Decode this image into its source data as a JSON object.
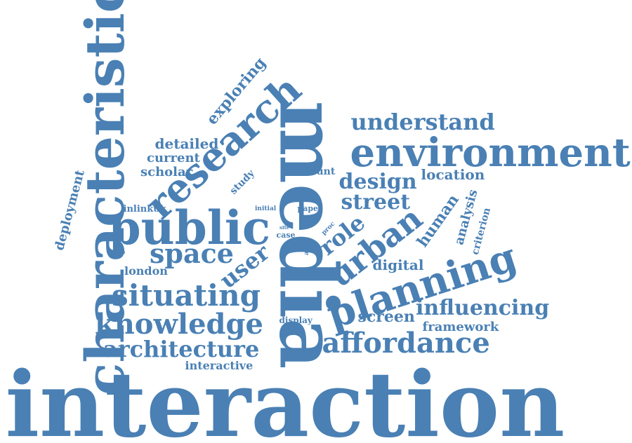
{
  "color": "#4a80b4",
  "words": [
    {
      "key": "interaction",
      "text": "interaction"
    },
    {
      "key": "media",
      "text": "media"
    },
    {
      "key": "characteristic",
      "text": "characteristic"
    },
    {
      "key": "environment",
      "text": "environment"
    },
    {
      "key": "public",
      "text": "public"
    },
    {
      "key": "planning",
      "text": "planning"
    },
    {
      "key": "research",
      "text": "research"
    },
    {
      "key": "knowledge",
      "text": "knowledge"
    },
    {
      "key": "situating",
      "text": "situating"
    },
    {
      "key": "affordance",
      "text": "affordance"
    },
    {
      "key": "architecture",
      "text": "architecture"
    },
    {
      "key": "understand",
      "text": "understand"
    },
    {
      "key": "urban",
      "text": "urban"
    },
    {
      "key": "space",
      "text": "space"
    },
    {
      "key": "design",
      "text": "design"
    },
    {
      "key": "street",
      "text": "street"
    },
    {
      "key": "influencing",
      "text": "influencing"
    },
    {
      "key": "user",
      "text": "user"
    },
    {
      "key": "role",
      "text": "role"
    },
    {
      "key": "screen",
      "text": "screen"
    },
    {
      "key": "exploring",
      "text": "exploring"
    },
    {
      "key": "human",
      "text": "human"
    },
    {
      "key": "deployment",
      "text": "deployment"
    },
    {
      "key": "detailed",
      "text": "detailed"
    },
    {
      "key": "current",
      "text": "current"
    },
    {
      "key": "scholar",
      "text": "scholar"
    },
    {
      "key": "location",
      "text": "location"
    },
    {
      "key": "digital",
      "text": "digital"
    },
    {
      "key": "framework",
      "text": "framework"
    },
    {
      "key": "interactive",
      "text": "interactive"
    },
    {
      "key": "analysis",
      "text": "analysis"
    },
    {
      "key": "london",
      "text": "london"
    },
    {
      "key": "study",
      "text": "study"
    },
    {
      "key": "inlinkuk",
      "text": "inlinkuk"
    },
    {
      "key": "criterion",
      "text": "criterion"
    },
    {
      "key": "account",
      "text": "account"
    },
    {
      "key": "paper",
      "text": "paper"
    },
    {
      "key": "display",
      "text": "display"
    },
    {
      "key": "initial",
      "text": "initial"
    },
    {
      "key": "case",
      "text": "case"
    },
    {
      "key": "site",
      "text": "site"
    },
    {
      "key": "addr",
      "text": "addr"
    },
    {
      "key": "proc",
      "text": "proc"
    }
  ]
}
